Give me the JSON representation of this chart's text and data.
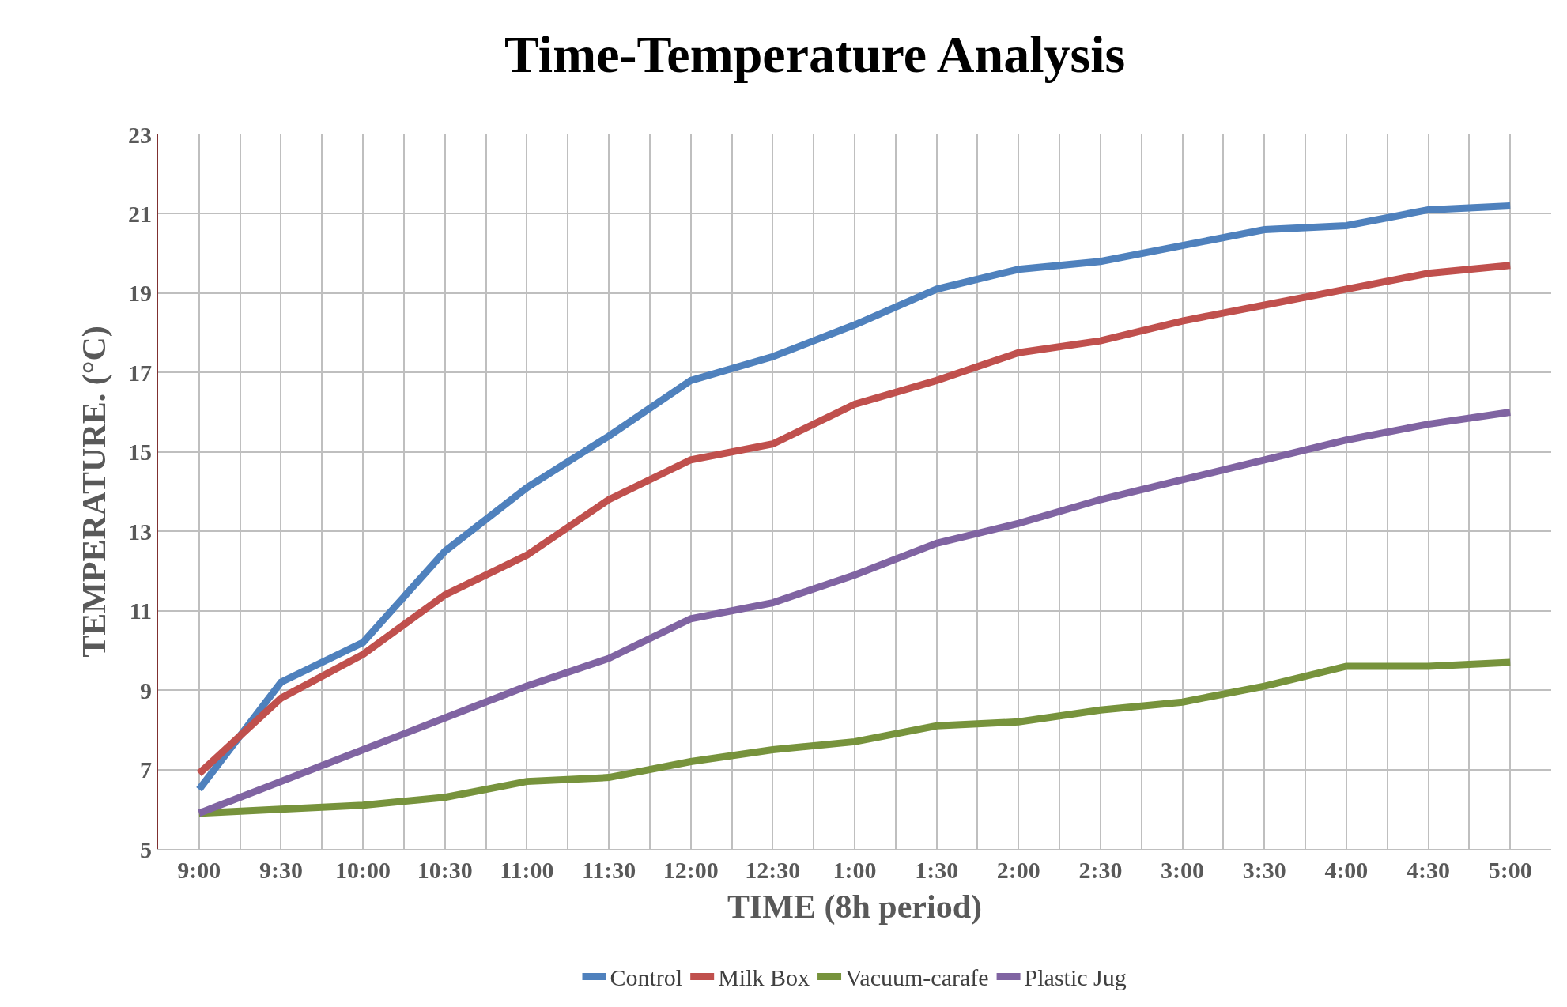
{
  "chart_data": {
    "type": "line",
    "title": "Time-Temperature Analysis",
    "xlabel": "TIME (8h period)",
    "ylabel": "TEMPERATURE. (°C)",
    "categories": [
      "9:00",
      "9:30",
      "10:00",
      "10:30",
      "11:00",
      "11:30",
      "12:00",
      "12:30",
      "1:00",
      "1:30",
      "2:00",
      "2:30",
      "3:00",
      "3:30",
      "4:00",
      "4:30",
      "5:00"
    ],
    "series": [
      {
        "name": "Control",
        "color": "#4f81bd",
        "values": [
          6.5,
          9.2,
          10.2,
          12.5,
          14.1,
          15.4,
          16.8,
          17.4,
          18.2,
          19.1,
          19.6,
          19.8,
          20.2,
          20.6,
          20.7,
          21.1,
          21.2
        ]
      },
      {
        "name": "Milk Box",
        "color": "#c0504d",
        "values": [
          6.9,
          8.8,
          9.9,
          11.4,
          12.4,
          13.8,
          14.8,
          15.2,
          16.2,
          16.8,
          17.5,
          17.8,
          18.3,
          18.7,
          19.1,
          19.5,
          19.7
        ]
      },
      {
        "name": "Vacuum-carafe",
        "color": "#77933c",
        "values": [
          5.9,
          6.0,
          6.1,
          6.3,
          6.7,
          6.8,
          7.2,
          7.5,
          7.7,
          8.1,
          8.2,
          8.5,
          8.7,
          9.1,
          9.6,
          9.6,
          9.7
        ]
      },
      {
        "name": "Plastic Jug",
        "color": "#8064a2",
        "values": [
          5.9,
          6.7,
          7.5,
          8.3,
          9.1,
          9.8,
          10.8,
          11.2,
          11.9,
          12.7,
          13.2,
          13.8,
          14.3,
          14.8,
          15.3,
          15.7,
          16.0
        ]
      }
    ],
    "ylim": [
      5,
      23
    ],
    "yticks": [
      5,
      7,
      9,
      11,
      13,
      15,
      17,
      19,
      21,
      23
    ],
    "grid": true,
    "legend": "bottom",
    "marker": "none",
    "line_style": "solid"
  }
}
